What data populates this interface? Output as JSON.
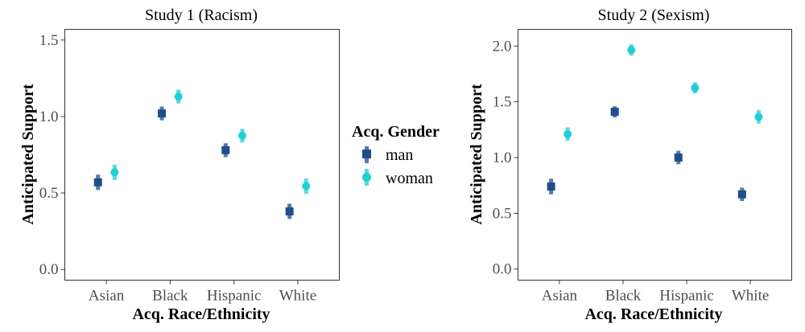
{
  "chart_data": [
    {
      "type": "scatter",
      "title": "Study 1 (Racism)",
      "xlabel": "Acq. Race/Ethnicity",
      "ylabel": "Anticipated Support",
      "categories": [
        "Asian",
        "Black",
        "Hispanic",
        "White"
      ],
      "ylim": [
        -0.07,
        1.57
      ],
      "yticks": [
        "0.0",
        "0.5",
        "1.0",
        "1.5"
      ],
      "series": [
        {
          "name": "man",
          "values": [
            0.57,
            1.02,
            0.78,
            0.38
          ],
          "err": [
            0.05,
            0.045,
            0.045,
            0.05
          ]
        },
        {
          "name": "woman",
          "values": [
            0.635,
            1.13,
            0.875,
            0.545
          ],
          "err": [
            0.05,
            0.045,
            0.045,
            0.05
          ]
        }
      ]
    },
    {
      "type": "scatter",
      "title": "Study 2 (Sexism)",
      "xlabel": "Acq. Race/Ethnicity",
      "ylabel": "Anticipated Support",
      "categories": [
        "Asian",
        "Black",
        "Hispanic",
        "White"
      ],
      "ylim": [
        -0.1,
        2.15
      ],
      "yticks": [
        "0.0",
        "0.5",
        "1.0",
        "1.5",
        "2.0"
      ],
      "series": [
        {
          "name": "man",
          "values": [
            0.74,
            1.41,
            1.0,
            0.67
          ],
          "err": [
            0.07,
            0.05,
            0.06,
            0.06
          ]
        },
        {
          "name": "woman",
          "values": [
            1.21,
            1.965,
            1.625,
            1.365
          ],
          "err": [
            0.06,
            0.05,
            0.05,
            0.06
          ]
        }
      ]
    }
  ],
  "legend": {
    "title": "Acq. Gender",
    "placement": "between panels",
    "items": [
      {
        "label": "man",
        "color": "#1f4e8c",
        "shape": "square"
      },
      {
        "label": "woman",
        "color": "#1fcfd6",
        "shape": "circle"
      }
    ]
  },
  "colors": {
    "man": "#1f4e8c",
    "woman": "#1fcfd6",
    "grid": "none",
    "border": "#333333"
  },
  "grid": false
}
